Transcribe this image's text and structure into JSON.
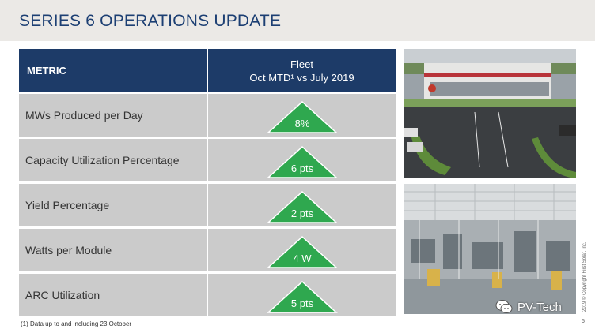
{
  "title": "SERIES 6 OPERATIONS UPDATE",
  "table": {
    "header_metric": "METRIC",
    "header_fleet_line1": "Fleet",
    "header_fleet_line2": "Oct MTD¹ vs July 2019",
    "rows": [
      {
        "metric": "MWs Produced per Day",
        "value": "8%"
      },
      {
        "metric": "Capacity Utilization Percentage",
        "value": "6 pts"
      },
      {
        "metric": "Yield Percentage",
        "value": "2 pts"
      },
      {
        "metric": "Watts per Module",
        "value": "4 W"
      },
      {
        "metric": "ARC Utilization",
        "value": "5 pts"
      }
    ]
  },
  "footnote": "(1) Data up to and including 23 October",
  "copyright": "2019 © Copyright First Solar, Inc.",
  "watermark": "PV-Tech",
  "page_number": "5",
  "colors": {
    "header_blue": "#1d3b68",
    "row_gray": "#cbcbcb",
    "arrow_green": "#2fa84f",
    "title_blue": "#1c3f73"
  },
  "icons": {
    "arrow": "green-up-triangle",
    "watermark": "wechat-icon"
  }
}
